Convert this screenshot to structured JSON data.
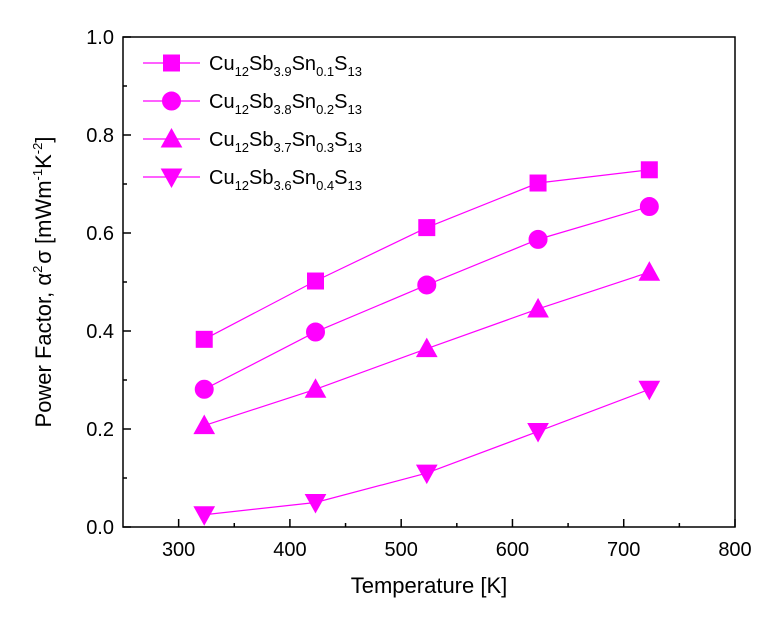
{
  "chart_data": {
    "type": "line",
    "xlabel": "Temperature [K]",
    "ylabel": {
      "prefix": "Power Factor, α",
      "sup": "2",
      "mid": "σ [mWm",
      "sup2": "-1",
      "mid2": "K",
      "sup3": "-2",
      "suffix": "]"
    },
    "xlim": [
      250,
      800
    ],
    "ylim": [
      0.0,
      1.0
    ],
    "xticks": [
      "300",
      "400",
      "500",
      "600",
      "700",
      "800"
    ],
    "xtick_values": [
      300,
      400,
      500,
      600,
      700,
      800
    ],
    "yticks": [
      "0.0",
      "0.2",
      "0.4",
      "0.6",
      "0.8",
      "1.0"
    ],
    "ytick_values": [
      0.0,
      0.2,
      0.4,
      0.6,
      0.8,
      1.0
    ],
    "legend_position": "top-left",
    "color": "#ff00ff",
    "x": [
      323,
      423,
      523,
      623,
      723
    ],
    "series": [
      {
        "name": "Cu12Sb3.9Sn0.1S13",
        "label_parts": [
          [
            "Cu",
            ""
          ],
          [
            "12",
            "sub"
          ],
          [
            "Sb",
            ""
          ],
          [
            "3.9",
            "sub"
          ],
          [
            "Sn",
            ""
          ],
          [
            "0.1",
            "sub"
          ],
          [
            "S",
            ""
          ],
          [
            "13",
            "sub"
          ]
        ],
        "marker": "square",
        "values": [
          0.383,
          0.502,
          0.611,
          0.702,
          0.729
        ]
      },
      {
        "name": "Cu12Sb3.8Sn0.2S13",
        "label_parts": [
          [
            "Cu",
            ""
          ],
          [
            "12",
            "sub"
          ],
          [
            "Sb",
            ""
          ],
          [
            "3.8",
            "sub"
          ],
          [
            "Sn",
            ""
          ],
          [
            "0.2",
            "sub"
          ],
          [
            "S",
            ""
          ],
          [
            "13",
            "sub"
          ]
        ],
        "marker": "circle",
        "values": [
          0.281,
          0.398,
          0.494,
          0.587,
          0.654
        ]
      },
      {
        "name": "Cu12Sb3.7Sn0.3S13",
        "label_parts": [
          [
            "Cu",
            ""
          ],
          [
            "12",
            "sub"
          ],
          [
            "Sb",
            ""
          ],
          [
            "3.7",
            "sub"
          ],
          [
            "Sn",
            ""
          ],
          [
            "0.3",
            "sub"
          ],
          [
            "S",
            ""
          ],
          [
            "13",
            "sub"
          ]
        ],
        "marker": "triangle-up",
        "values": [
          0.207,
          0.281,
          0.364,
          0.445,
          0.52
        ]
      },
      {
        "name": "Cu12Sb3.6Sn0.4S13",
        "label_parts": [
          [
            "Cu",
            ""
          ],
          [
            "12",
            "sub"
          ],
          [
            "Sb",
            ""
          ],
          [
            "3.6",
            "sub"
          ],
          [
            "Sn",
            ""
          ],
          [
            "0.4",
            "sub"
          ],
          [
            "S",
            ""
          ],
          [
            "13",
            "sub"
          ]
        ],
        "marker": "triangle-down",
        "values": [
          0.025,
          0.05,
          0.11,
          0.195,
          0.281
        ]
      }
    ]
  }
}
